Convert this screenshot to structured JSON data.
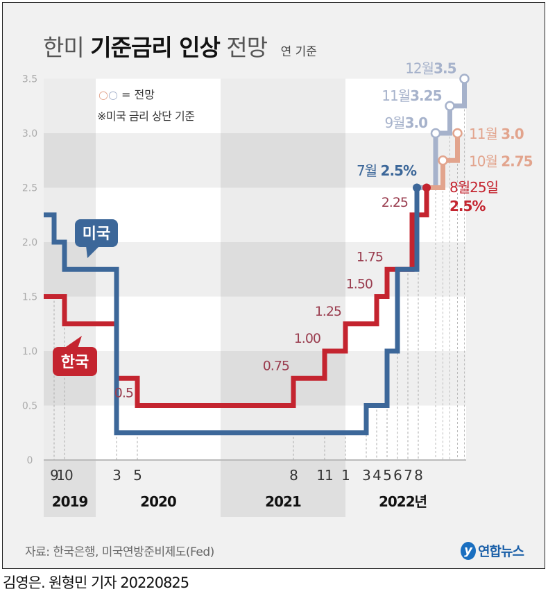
{
  "header": {
    "title_part1": "한미",
    "title_bold": "기준금리 인상",
    "title_part2": "전망",
    "unit": "연 기준"
  },
  "legend": {
    "forecast_marker": "○○",
    "forecast_label": "= 전망",
    "note": "※미국 금리 상단 기준"
  },
  "source": "자료: 한국은행, 미국연방준비제도(Fed)",
  "logo": {
    "mark": "y",
    "text": "연합뉴스"
  },
  "footer": "김영은. 원형민 기자 20220825",
  "colors": {
    "us": "#3c6799",
    "korea": "#c4242f",
    "korea_label": "#9a3d4f",
    "us_forecast": "#a6b2cb",
    "korea_forecast": "#e2a48d",
    "background": "#f1f1f1"
  },
  "chart_data": {
    "type": "line",
    "step": true,
    "ylim": [
      0,
      3.5
    ],
    "yticks": [
      "0",
      "0.5",
      "1.0",
      "1.5",
      "2.0",
      "2.5",
      "3.0",
      "3.5"
    ],
    "x_range": [
      "2019-08",
      "2022-12"
    ],
    "month_ticks": [
      {
        "date": "2019-09",
        "label": "9"
      },
      {
        "date": "2019-10",
        "label": "10"
      },
      {
        "date": "2020-03",
        "label": "3"
      },
      {
        "date": "2020-05",
        "label": "5"
      },
      {
        "date": "2021-08",
        "label": "8"
      },
      {
        "date": "2021-11",
        "label": "11"
      },
      {
        "date": "2022-01",
        "label": "1"
      },
      {
        "date": "2022-03",
        "label": "3"
      },
      {
        "date": "2022-04",
        "label": "4"
      },
      {
        "date": "2022-05",
        "label": "5"
      },
      {
        "date": "2022-06",
        "label": "6"
      },
      {
        "date": "2022-07",
        "label": "7"
      },
      {
        "date": "2022-08",
        "label": "8"
      }
    ],
    "years": [
      {
        "label": "2019",
        "start": "2019-08",
        "end": "2020-01",
        "shaded": true
      },
      {
        "label": "2020",
        "start": "2020-01",
        "end": "2021-01",
        "shaded": false
      },
      {
        "label": "2021",
        "start": "2021-01",
        "end": "2022-01",
        "shaded": true
      },
      {
        "label": "2022년",
        "start": "2022-01",
        "end": "2022-12",
        "shaded": false
      }
    ],
    "series": [
      {
        "name": "미국",
        "key": "us",
        "points": [
          [
            "2019-08",
            2.25
          ],
          [
            "2019-09",
            2.0
          ],
          [
            "2019-10",
            1.75
          ],
          [
            "2020-03",
            0.25
          ],
          [
            "2022-03",
            0.5
          ],
          [
            "2022-05",
            1.0
          ],
          [
            "2022-06",
            1.75
          ],
          [
            "2022-07-27",
            2.5
          ]
        ],
        "end_label": {
          "month": "7월",
          "value": "2.5%"
        },
        "forecast": [
          {
            "date": "2022-09-21",
            "value": 3.0,
            "month": "9월",
            "label": "3.0"
          },
          {
            "date": "2022-11-02",
            "value": 3.25,
            "month": "11월",
            "label": "3.25"
          },
          {
            "date": "2022-12-14",
            "value": 3.5,
            "month": "12월",
            "label": "3.5"
          }
        ]
      },
      {
        "name": "한국",
        "key": "korea",
        "points": [
          [
            "2019-08",
            1.5
          ],
          [
            "2019-10",
            1.25
          ],
          [
            "2020-03",
            0.75
          ],
          [
            "2020-05",
            0.5
          ],
          [
            "2021-08",
            0.75
          ],
          [
            "2021-11",
            1.0
          ],
          [
            "2022-01",
            1.25
          ],
          [
            "2022-04",
            1.5
          ],
          [
            "2022-05",
            1.75
          ],
          [
            "2022-07-13",
            2.25
          ],
          [
            "2022-08-25",
            2.5
          ]
        ],
        "value_labels": [
          {
            "date": "2020-05",
            "value": 0.5,
            "label": "0.5"
          },
          {
            "date": "2021-08",
            "value": 0.75,
            "label": "0.75"
          },
          {
            "date": "2021-11",
            "value": 1.0,
            "label": "1.00"
          },
          {
            "date": "2022-01",
            "value": 1.25,
            "label": "1.25"
          },
          {
            "date": "2022-04",
            "value": 1.5,
            "label": "1.50"
          },
          {
            "date": "2022-05",
            "value": 1.75,
            "label": "1.75"
          },
          {
            "date": "2022-07-13",
            "value": 2.25,
            "label": "2.25"
          }
        ],
        "end_label": {
          "month": "8월25일",
          "value": "2.5%"
        },
        "forecast": [
          {
            "date": "2022-10-12",
            "value": 2.75,
            "month": "10월",
            "label": "2.75"
          },
          {
            "date": "2022-11-24",
            "value": 3.0,
            "month": "11월",
            "label": "3.0"
          }
        ]
      }
    ]
  }
}
